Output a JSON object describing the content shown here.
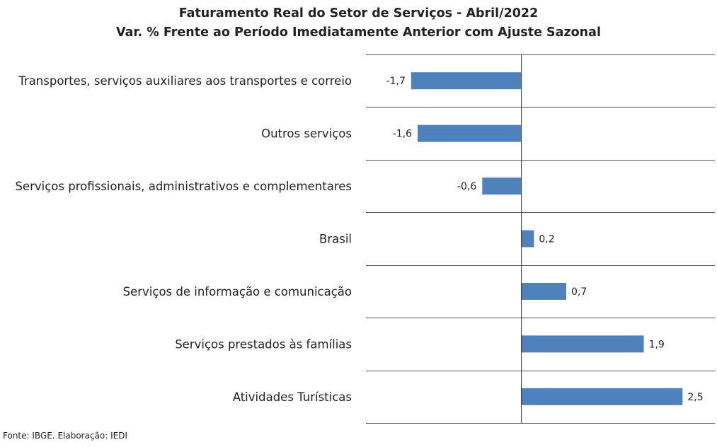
{
  "chart_data": {
    "type": "bar",
    "orientation": "horizontal",
    "title": "Faturamento Real do Setor de Serviços - Abril/2022",
    "subtitle": "Var. % Frente ao Período Imediatamente Anterior com Ajuste Sazonal",
    "categories": [
      "Transportes, serviços auxiliares aos transportes e correio",
      "Outros serviços",
      "Serviços profissionais, administrativos e complementares",
      "Brasil",
      "Serviços de informação e comunicação",
      "Serviços prestados às famílias",
      "Atividades Turísticas"
    ],
    "values": [
      -1.7,
      -1.6,
      -0.6,
      0.2,
      0.7,
      1.9,
      2.5
    ],
    "value_labels": [
      "-1,7",
      "-1,6",
      "-0,6",
      "0,2",
      "0,7",
      "1,9",
      "2,5"
    ],
    "xlim": [
      -2.4,
      3.0
    ],
    "grid": "horizontal separators",
    "legend": "none",
    "bar_color": "#4f81bd",
    "source": "Fonte: IBGE. Elaboração: IEDI"
  }
}
